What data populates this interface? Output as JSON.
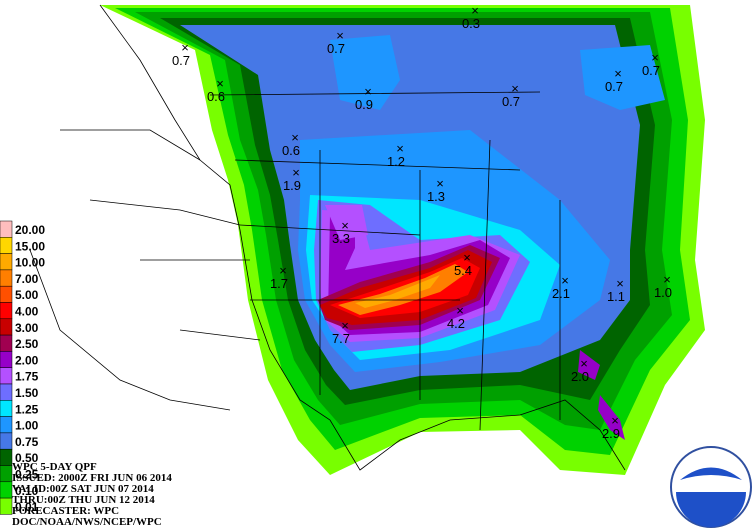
{
  "legend": [
    {
      "label": "20.00",
      "color": "#ffbebe"
    },
    {
      "label": "15.00",
      "color": "#ffd700"
    },
    {
      "label": "10.00",
      "color": "#ffaa00"
    },
    {
      "label": "7.00",
      "color": "#ff7f00"
    },
    {
      "label": "5.00",
      "color": "#ff5000"
    },
    {
      "label": "4.00",
      "color": "#ff0000"
    },
    {
      "label": "3.00",
      "color": "#c80000"
    },
    {
      "label": "2.50",
      "color": "#a00050"
    },
    {
      "label": "2.00",
      "color": "#9600c8"
    },
    {
      "label": "1.75",
      "color": "#b450ff"
    },
    {
      "label": "1.50",
      "color": "#6e6eff"
    },
    {
      "label": "1.25",
      "color": "#00e6ff"
    },
    {
      "label": "1.00",
      "color": "#1e96ff"
    },
    {
      "label": "0.75",
      "color": "#4678e6"
    },
    {
      "label": "0.50",
      "color": "#006400"
    },
    {
      "label": "0.25",
      "color": "#00a000"
    },
    {
      "label": "0.10",
      "color": "#00d200"
    },
    {
      "label": "0.01",
      "color": "#78ff00"
    }
  ],
  "info": [
    "WPC 5-DAY QPF",
    "ISSUED: 2000Z FRI JUN 06 2014",
    "VALID:00Z SAT JUN 07 2014",
    "THRU:00Z THU JUN 12 2014",
    "FORECASTER: WPC",
    "DOC/NOAA/NWS/NCEP/WPC"
  ],
  "maxima": [
    "0.3",
    "0.7",
    "0.7",
    "0.6",
    "0.9",
    "0.7",
    "0.7",
    "0.7",
    "0.6",
    "1.2",
    "1.9",
    "1.3",
    "3.3",
    "1.7",
    "5.4",
    "2.1",
    "1.1",
    "1.0",
    "7.7",
    "4.2",
    "2.0",
    "2.9"
  ],
  "logo": "NOAA"
}
